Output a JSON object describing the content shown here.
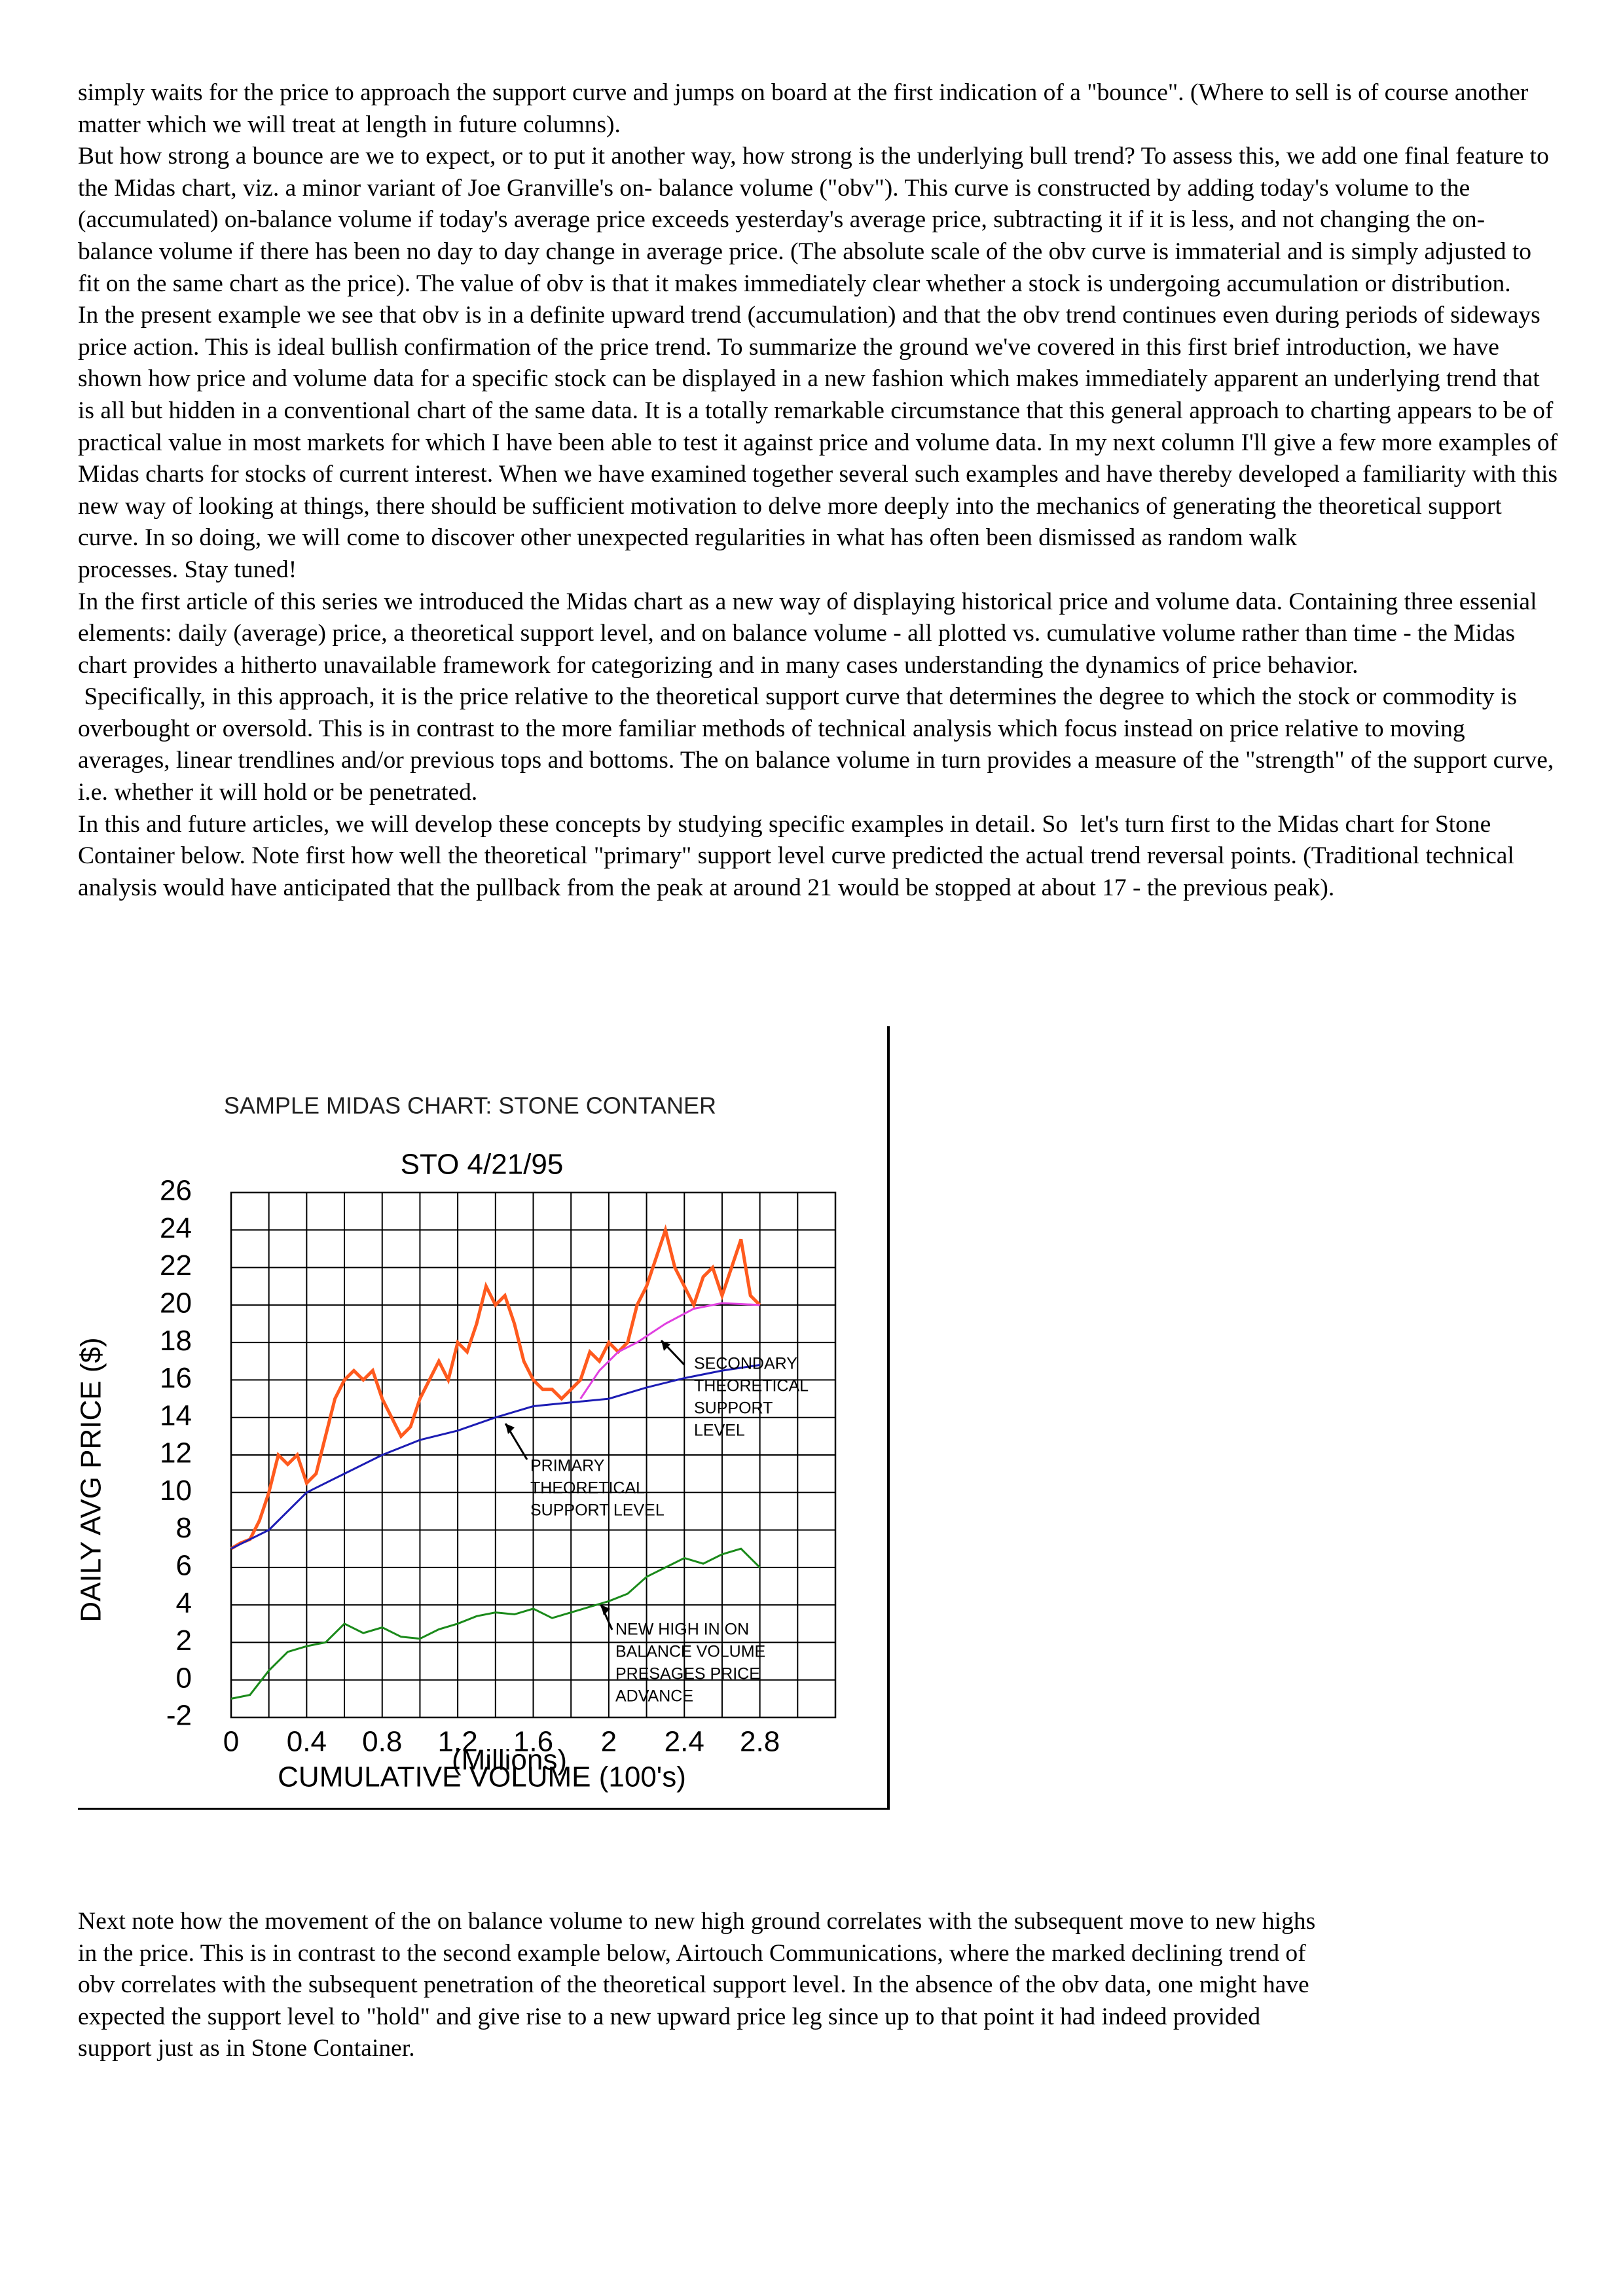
{
  "paragraphs": [
    "simply waits for the price to approach the support curve and jumps on board at the first indication of a \"bounce\". (Where to sell is of course another matter which we will treat at length in future columns).",
    "But how strong a bounce are we to expect, or to put it another way, how strong is the underlying bull trend? To assess this, we add one final feature to the Midas chart, viz. a minor variant of Joe Granville's on- balance volume (\"obv\"). This curve is constructed by adding today's volume to the (accumulated) on-balance volume if today's average price exceeds yesterday's average price, subtracting it if it is less, and not changing the on-balance volume if there has been no day to day change in average price. (The absolute scale of the obv curve is immaterial and is simply adjusted to fit on the same chart as the price). The value of obv is that it makes immediately clear whether a stock is undergoing accumulation or distribution.",
    "In the present example we see that obv is in a definite upward trend (accumulation) and that the obv trend continues even during periods of sideways price action. This is ideal bullish confirmation of the price trend. To summarize the ground we've covered in this first brief introduction, we have shown how price and volume data for a specific stock can be displayed in a new fashion which makes immediately apparent an underlying trend that is all but hidden in a conventional chart of the same data. It is a totally remarkable circumstance that this general approach to charting appears to be of practical value in most markets for which I have been able to test it against price and volume data. In my next column I'll give a few more examples of Midas charts for stocks of current interest. When we have examined together several such examples and have thereby developed a familiarity with this new way of looking at things, there should be sufficient motivation to delve more deeply into the mechanics of generating the theoretical support curve. In so doing, we will come to discover other unexpected regularities in what has often been dismissed as random walk",
    "processes. Stay tuned!",
    "In the first article of this series we introduced the Midas chart as a new way of displaying historical price and volume data. Containing three essenial elements: daily (average) price, a theoretical support level, and on balance volume - all plotted vs. cumulative volume rather than time - the Midas chart provides a hitherto unavailable framework for categorizing and in many cases understanding the dynamics of price behavior.",
    " Specifically, in this approach, it is the price relative to the theoretical support curve that determines the degree to which the stock or commodity is overbought or oversold. This is in contrast to the more familiar methods of technical analysis which focus instead on price relative to moving averages, linear trendlines and/or previous tops and bottoms. The on balance volume in turn provides a measure of the \"strength\" of the support curve, i.e. whether it will hold or be penetrated.",
    "In this and future articles, we will develop these concepts by studying specific examples in detail. So  let's turn first to the Midas chart for Stone Container below. Note first how well the theoretical \"primary\" support level curve predicted the actual trend reversal points. (Traditional technical analysis would have anticipated that the pullback from the peak at around 21 would be stopped at about 17 - the previous peak)."
  ],
  "chart_data": {
    "type": "line",
    "title": "SAMPLE MIDAS CHART:  STONE CONTANER",
    "subtitle": "STO   4/21/95",
    "y_label": "DAILY AVG PRICE ($)",
    "x_unit_label": "(Millions)",
    "x_label": "CUMULATIVE VOLUME (100's)",
    "xlim": [
      0,
      3.2
    ],
    "ylim": [
      -2,
      26
    ],
    "xticks": [
      0,
      0.4,
      0.8,
      1.2,
      1.6,
      2,
      2.4,
      2.8
    ],
    "yticks": [
      -2,
      0,
      2,
      4,
      6,
      8,
      10,
      12,
      14,
      16,
      18,
      20,
      22,
      24,
      26
    ],
    "grid": true,
    "series": [
      {
        "color": "#ff5a1e",
        "x": [
          0,
          0.05,
          0.1,
          0.15,
          0.2,
          0.25,
          0.3,
          0.35,
          0.4,
          0.45,
          0.5,
          0.55,
          0.6,
          0.65,
          0.7,
          0.75,
          0.8,
          0.85,
          0.9,
          0.95,
          1.0,
          1.05,
          1.1,
          1.15,
          1.2,
          1.25,
          1.3,
          1.35,
          1.4,
          1.45,
          1.5,
          1.55,
          1.6,
          1.65,
          1.7,
          1.75,
          1.8,
          1.85,
          1.9,
          1.95,
          2.0,
          2.05,
          2.1,
          2.15,
          2.2,
          2.25,
          2.3,
          2.35,
          2.4,
          2.45,
          2.5,
          2.55,
          2.6,
          2.65,
          2.7,
          2.75,
          2.8
        ],
        "values": [
          7,
          7.3,
          7.5,
          8.5,
          10,
          12,
          11.5,
          12,
          10.5,
          11,
          13,
          15,
          16,
          16.5,
          16,
          16.5,
          15,
          14,
          13,
          13.5,
          15,
          16,
          17,
          16,
          18,
          17.5,
          19,
          21,
          20,
          20.5,
          19,
          17,
          16,
          15.5,
          15.5,
          15,
          15.5,
          16,
          17.5,
          17,
          18,
          17.5,
          18,
          20,
          21,
          22.5,
          24,
          22,
          21,
          20,
          21.5,
          22,
          20.5,
          22,
          23.5,
          20.5,
          20
        ]
      },
      {
        "color": "#1c1cb4",
        "x": [
          0,
          0.2,
          0.4,
          0.6,
          0.8,
          1.0,
          1.2,
          1.4,
          1.6,
          1.8,
          2.0,
          2.2,
          2.4,
          2.6,
          2.8
        ],
        "values": [
          7,
          8,
          10,
          11,
          12,
          12.8,
          13.3,
          14,
          14.6,
          14.8,
          15,
          15.6,
          16.1,
          16.5,
          16.8
        ]
      },
      {
        "color": "#e040e0",
        "x": [
          1.85,
          1.95,
          2.05,
          2.15,
          2.3,
          2.45,
          2.6,
          2.8
        ],
        "values": [
          15,
          16.5,
          17.5,
          18,
          19,
          19.8,
          20.1,
          20
        ]
      },
      {
        "color": "#1a8a1a",
        "x": [
          0,
          0.1,
          0.2,
          0.3,
          0.4,
          0.5,
          0.6,
          0.7,
          0.8,
          0.9,
          1.0,
          1.1,
          1.2,
          1.3,
          1.4,
          1.5,
          1.6,
          1.7,
          1.8,
          1.9,
          2.0,
          2.1,
          2.2,
          2.3,
          2.4,
          2.5,
          2.6,
          2.7,
          2.8
        ],
        "values": [
          -1,
          -0.8,
          0.5,
          1.5,
          1.8,
          2,
          3,
          2.5,
          2.8,
          2.3,
          2.2,
          2.7,
          3,
          3.4,
          3.6,
          3.5,
          3.8,
          3.3,
          3.6,
          3.9,
          4.2,
          4.6,
          5.5,
          6,
          6.5,
          6.2,
          6.7,
          7,
          6
        ]
      }
    ],
    "annotations": [
      [
        "SECONDARY",
        "THEORETICAL",
        "SUPPORT",
        "LEVEL"
      ],
      [
        "PRIMARY",
        "THEORETICAL",
        "SUPPORT LEVEL"
      ],
      [
        "NEW HIGH IN ON",
        "BALANCE VOLUME",
        "PRESAGES PRICE",
        "ADVANCE"
      ]
    ]
  },
  "closing_paragraph": "Next note how the movement of the on balance volume to new high ground correlates with the subsequent move to new highs in the price. This is in contrast to the second example below, Airtouch Communications, where the marked declining trend of obv correlates with the subsequent penetration of the theoretical support level. In the absence of the obv data, one might have expected the support level to \"hold\" and give rise to a new upward price leg since up to that point it had indeed provided support just as in Stone Container."
}
